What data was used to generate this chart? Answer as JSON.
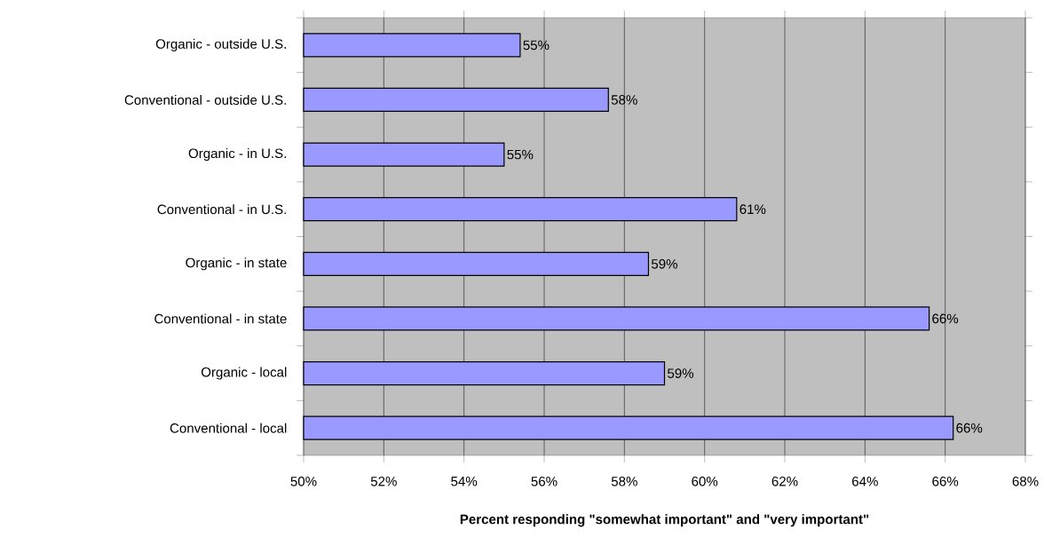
{
  "chart_data": {
    "type": "bar",
    "orientation": "horizontal",
    "xlabel": "Percent responding \"somewhat important\" and \"very important\"",
    "categories": [
      "Organic - outside U.S.",
      "Conventional - outside U.S.",
      "Organic - in U.S.",
      "Conventional - in U.S.",
      "Organic - in state",
      "Conventional - in state",
      "Organic - local",
      "Conventional - local"
    ],
    "values": [
      55.4,
      57.6,
      55.0,
      60.8,
      58.6,
      65.6,
      59.0,
      66.2
    ],
    "value_labels": [
      "55%",
      "58%",
      "55%",
      "61%",
      "59%",
      "66%",
      "59%",
      "66%"
    ],
    "color": "#9999ff",
    "xlim": [
      50,
      68
    ],
    "xticks": [
      {
        "value": 50,
        "label": "50%"
      },
      {
        "value": 52,
        "label": "52%"
      },
      {
        "value": 54,
        "label": "54%"
      },
      {
        "value": 56,
        "label": "56%"
      },
      {
        "value": 58,
        "label": "58%"
      },
      {
        "value": 60,
        "label": "60%"
      },
      {
        "value": 62,
        "label": "62%"
      },
      {
        "value": 64,
        "label": "64%"
      },
      {
        "value": 66,
        "label": "66%"
      },
      {
        "value": 68,
        "label": "68%"
      }
    ],
    "grid": "x"
  }
}
